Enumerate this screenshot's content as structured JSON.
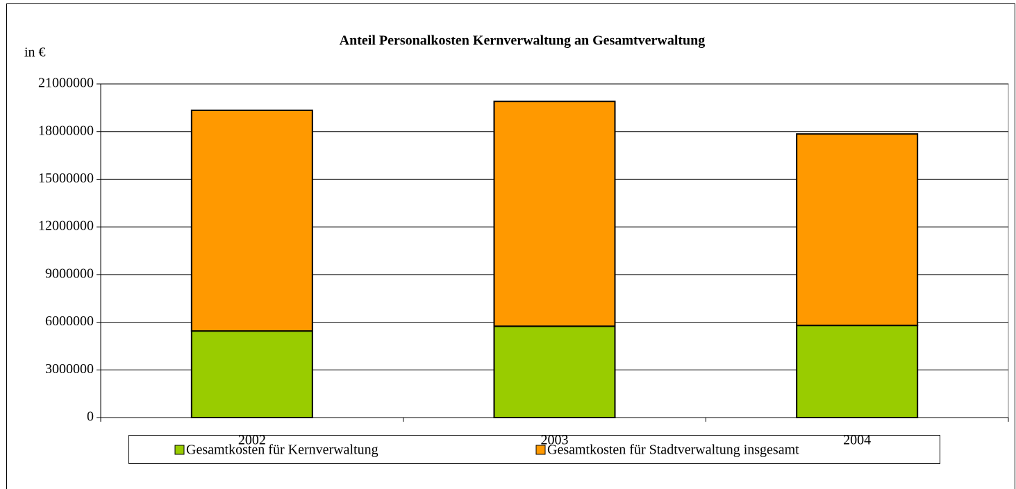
{
  "chart_data": {
    "type": "stacked_bar",
    "title": "Anteil Personalkosten Kernverwaltung an Gesamtverwaltung",
    "y_label": "in €",
    "categories": [
      "2002",
      "2003",
      "2004"
    ],
    "series": [
      {
        "name": "Gesamtkosten für Kernverwaltung",
        "color": "#99cc00",
        "values": [
          5450000,
          5750000,
          5800000
        ]
      },
      {
        "name": "Gesamtkosten für Stadtverwaltung insgesamt",
        "color": "#ff9900",
        "values": [
          13890000,
          14150000,
          12050000
        ]
      }
    ],
    "ylim": [
      0,
      21000000
    ],
    "yticks": [
      0,
      3000000,
      6000000,
      9000000,
      12000000,
      15000000,
      18000000,
      21000000
    ],
    "grid": true,
    "legend": "bottom"
  }
}
